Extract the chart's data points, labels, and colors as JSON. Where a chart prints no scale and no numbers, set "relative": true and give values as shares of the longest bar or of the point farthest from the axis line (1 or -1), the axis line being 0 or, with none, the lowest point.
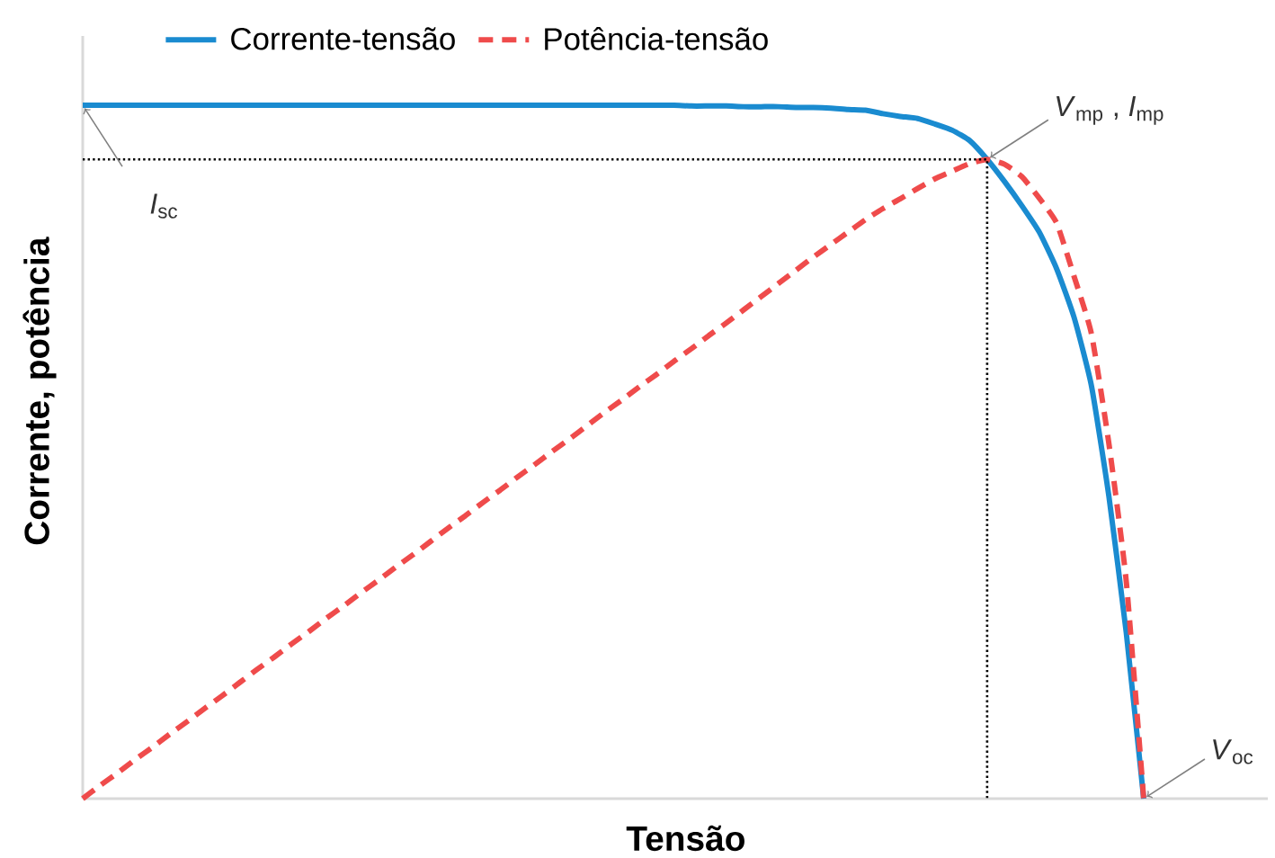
{
  "chart_data": {
    "type": "line",
    "relative": true,
    "xlabel": "Tensão",
    "ylabel": "Corrente, potência",
    "legend": "top left",
    "categories": [
      null,
      null,
      null,
      null,
      null,
      null,
      null,
      null,
      null,
      null,
      null,
      null,
      null,
      null,
      null,
      null,
      null,
      null,
      null,
      null,
      null,
      null,
      null,
      null,
      null,
      null,
      null,
      null,
      null,
      null,
      null,
      null,
      null,
      null,
      null,
      null,
      null,
      null,
      null,
      null,
      null,
      null,
      null,
      null,
      null,
      null,
      null,
      null,
      null,
      null,
      null,
      null,
      null,
      null,
      null,
      null,
      null,
      null,
      null,
      null,
      null,
      null
    ],
    "series": [
      {
        "name": "Corrente-tensão",
        "color": "#1a8bd0",
        "line_style": "solid",
        "values": [
          1,
          1,
          1,
          1,
          1,
          1,
          1,
          1,
          1,
          1,
          1,
          1,
          1,
          1,
          1,
          1,
          1,
          1,
          1,
          1,
          1,
          1,
          1,
          1,
          1,
          1,
          1,
          1,
          1,
          1,
          1,
          1,
          1,
          1,
          1,
          0.999,
          0.999,
          0.999,
          0.998,
          0.998,
          0.998,
          0.997,
          0.997,
          0.996,
          0.994,
          0.993,
          0.988,
          0.984,
          0.981,
          0.973,
          0.964,
          0.949,
          0.922,
          0.89,
          0.855,
          0.817,
          0.764,
          0.694,
          0.595,
          0.436,
          0.239,
          0
        ]
      },
      {
        "name": "Potência-tensão",
        "color": "#ef4b4b",
        "line_style": "dashed",
        "values": [
          0,
          0.019,
          0.037,
          0.056,
          0.074,
          0.093,
          0.111,
          0.13,
          0.148,
          0.167,
          0.186,
          0.204,
          0.223,
          0.241,
          0.26,
          0.278,
          0.297,
          0.315,
          0.334,
          0.352,
          0.371,
          0.39,
          0.408,
          0.427,
          0.445,
          0.464,
          0.482,
          0.501,
          0.519,
          0.538,
          0.557,
          0.575,
          0.594,
          0.612,
          0.631,
          0.649,
          0.668,
          0.686,
          0.705,
          0.724,
          0.743,
          0.762,
          0.781,
          0.799,
          0.817,
          0.835,
          0.851,
          0.865,
          0.88,
          0.894,
          0.905,
          0.916,
          0.922,
          0.915,
          0.897,
          0.866,
          0.83,
          0.753,
          0.67,
          0.512,
          0.313,
          0
        ]
      }
    ],
    "ref_lines": [
      {
        "axis": "y",
        "value": 0.922,
        "color": "#000000",
        "line_style": "dotted"
      }
    ],
    "annotations": [
      "*I*$_{sc}$",
      "*V*$_{mp}$ , *I*$_{mp}$",
      "*V*$_{oc}$"
    ]
  }
}
